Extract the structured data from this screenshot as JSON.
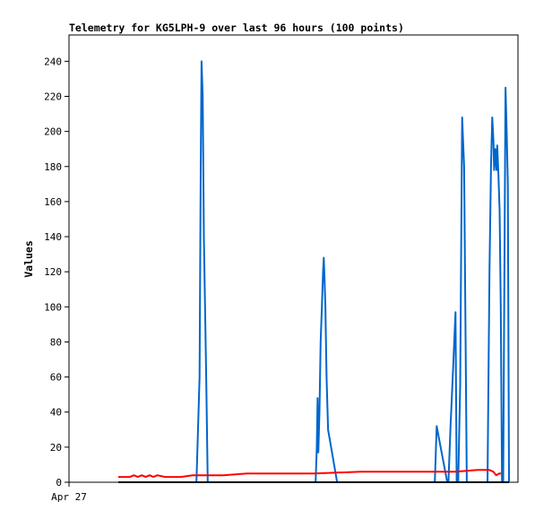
{
  "chart_data": {
    "type": "line",
    "title": "Telemetry for KG5LPH-9 over last 96 hours (100 points)",
    "xlabel": "",
    "ylabel": "Values",
    "x_tick_labels": [
      "Apr 27"
    ],
    "y_ticks": [
      0,
      20,
      40,
      60,
      80,
      100,
      120,
      140,
      160,
      180,
      200,
      220,
      240
    ],
    "ylim": [
      0,
      255
    ],
    "xlim": [
      0,
      100
    ],
    "grid": false,
    "legend": "none",
    "series": [
      {
        "color": "#0066cc",
        "points": [
          [
            20.0,
            0
          ],
          [
            20.8,
            60
          ],
          [
            21.1,
            180
          ],
          [
            21.3,
            240
          ],
          [
            21.6,
            220
          ],
          [
            21.9,
            140
          ],
          [
            22.2,
            100
          ],
          [
            22.5,
            60
          ],
          [
            22.9,
            0
          ],
          [
            50.5,
            0
          ],
          [
            50.8,
            20
          ],
          [
            51.0,
            48
          ],
          [
            51.2,
            17
          ],
          [
            51.5,
            40
          ],
          [
            51.8,
            80
          ],
          [
            52.1,
            100
          ],
          [
            52.4,
            120
          ],
          [
            52.6,
            128
          ],
          [
            52.8,
            115
          ],
          [
            53.0,
            100
          ],
          [
            53.3,
            60
          ],
          [
            53.7,
            30
          ],
          [
            56.0,
            0
          ],
          [
            81.0,
            0
          ],
          [
            81.5,
            32
          ],
          [
            82.5,
            20
          ],
          [
            84.2,
            0
          ],
          [
            84.5,
            0
          ],
          [
            85.0,
            30
          ],
          [
            85.6,
            60
          ],
          [
            86.3,
            97
          ],
          [
            86.6,
            0
          ],
          [
            87.0,
            0
          ],
          [
            87.5,
            55
          ],
          [
            88.0,
            208
          ],
          [
            88.5,
            180
          ],
          [
            89.2,
            0
          ],
          [
            94.5,
            0
          ],
          [
            95.0,
            120
          ],
          [
            95.4,
            180
          ],
          [
            95.7,
            208
          ],
          [
            96.0,
            195
          ],
          [
            96.2,
            178
          ],
          [
            96.5,
            190
          ],
          [
            96.8,
            178
          ],
          [
            97.0,
            192
          ],
          [
            97.3,
            175
          ],
          [
            97.6,
            155
          ],
          [
            97.9,
            100
          ],
          [
            98.2,
            0
          ],
          [
            98.5,
            0
          ],
          [
            98.8,
            115
          ],
          [
            99.1,
            225
          ],
          [
            99.4,
            200
          ],
          [
            99.7,
            170
          ],
          [
            100.0,
            0
          ]
        ]
      },
      {
        "color": "#ff0000",
        "points": [
          [
            0,
            3
          ],
          [
            3,
            3
          ],
          [
            4,
            4
          ],
          [
            5,
            3
          ],
          [
            6,
            4
          ],
          [
            7,
            3
          ],
          [
            8,
            4
          ],
          [
            9,
            3
          ],
          [
            10,
            4
          ],
          [
            12,
            3
          ],
          [
            16,
            3
          ],
          [
            19,
            4
          ],
          [
            24,
            4
          ],
          [
            27,
            4
          ],
          [
            33,
            5
          ],
          [
            40,
            5
          ],
          [
            50,
            5
          ],
          [
            62,
            6
          ],
          [
            70,
            6
          ],
          [
            78,
            6
          ],
          [
            86,
            6
          ],
          [
            92,
            7
          ],
          [
            95,
            7
          ],
          [
            96,
            6
          ],
          [
            96.7,
            4
          ],
          [
            97.5,
            5
          ],
          [
            98,
            5
          ]
        ]
      },
      {
        "color": "#000000",
        "points": [
          [
            0,
            0
          ],
          [
            100,
            0
          ]
        ]
      }
    ]
  }
}
